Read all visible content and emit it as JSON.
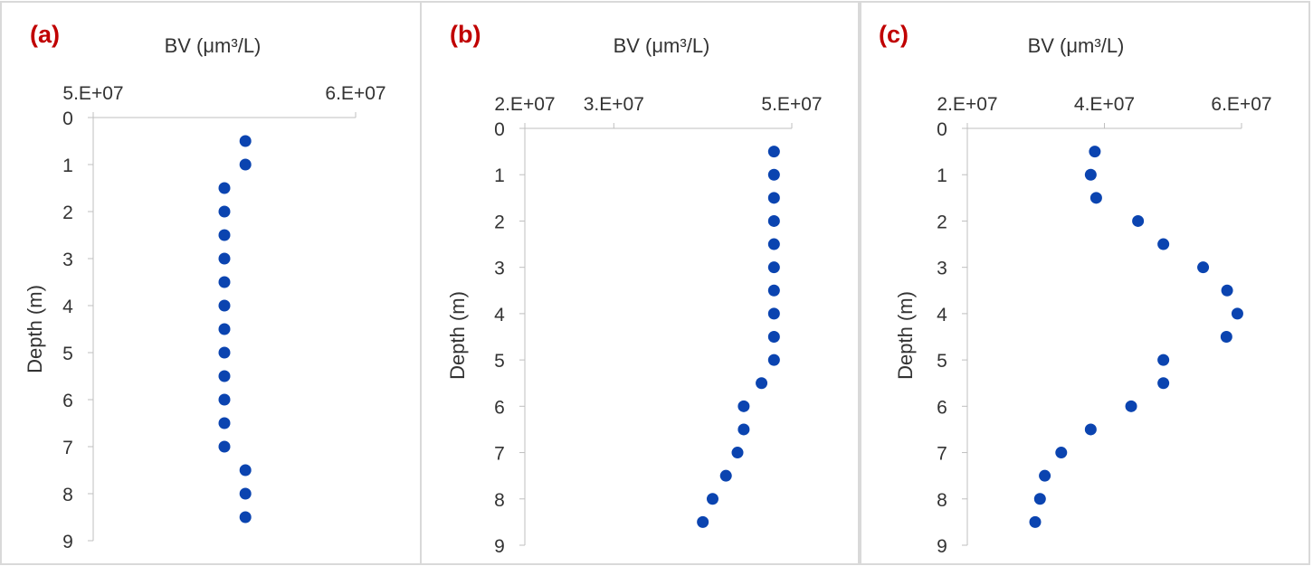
{
  "chart_data": [
    {
      "type": "scatter",
      "panel_label": "(a)",
      "xlabel": "BV (μm³/L)",
      "ylabel": "Depth (m)",
      "xlim": [
        50000000,
        60000000
      ],
      "ylim": [
        0,
        9
      ],
      "y_inverted": true,
      "x_axis_position": "top",
      "x_ticks": [
        50000000,
        60000000
      ],
      "x_tick_labels": [
        "5.E+07",
        "6.E+07"
      ],
      "y_ticks": [
        0,
        1,
        2,
        3,
        4,
        5,
        6,
        7,
        8,
        9
      ],
      "y_tick_labels": [
        "0",
        "1",
        "2",
        "3",
        "4",
        "5",
        "6",
        "7",
        "8",
        "9"
      ],
      "grid": false,
      "legend": false,
      "marker_color": "#0b44b0",
      "x": [
        55800000,
        55800000,
        55000000,
        55000000,
        55000000,
        55000000,
        55000000,
        55000000,
        55000000,
        55000000,
        55000000,
        55000000,
        55000000,
        55000000,
        55800000,
        55800000,
        55800000
      ],
      "y": [
        0.5,
        1.0,
        1.5,
        2.0,
        2.5,
        3.0,
        3.5,
        4.0,
        4.5,
        5.0,
        5.5,
        6.0,
        6.5,
        7.0,
        7.5,
        8.0,
        8.5
      ]
    },
    {
      "type": "scatter",
      "panel_label": "(b)",
      "xlabel": "BV (μm³/L)",
      "ylabel": "Depth (m)",
      "xlim": [
        20000000,
        50000000
      ],
      "ylim": [
        0,
        9
      ],
      "y_inverted": true,
      "x_axis_position": "top",
      "x_ticks": [
        20000000,
        30000000,
        50000000
      ],
      "x_tick_labels": [
        "2.E+07",
        "3.E+07",
        "5.E+07"
      ],
      "y_ticks": [
        0,
        1,
        2,
        3,
        4,
        5,
        6,
        7,
        8,
        9
      ],
      "y_tick_labels": [
        "0",
        "1",
        "2",
        "3",
        "4",
        "5",
        "6",
        "7",
        "8",
        "9"
      ],
      "grid": false,
      "legend": false,
      "marker_color": "#0b44b0",
      "x": [
        48000000,
        48000000,
        48000000,
        48000000,
        48000000,
        48000000,
        48000000,
        48000000,
        48000000,
        48000000,
        46600000,
        44600000,
        44600000,
        43900000,
        42600000,
        41100000,
        40000000
      ],
      "y": [
        0.5,
        1.0,
        1.5,
        2.0,
        2.5,
        3.0,
        3.5,
        4.0,
        4.5,
        5.0,
        5.5,
        6.0,
        6.5,
        7.0,
        7.5,
        8.0,
        8.5
      ]
    },
    {
      "type": "scatter",
      "panel_label": "(c)",
      "xlabel": "BV (μm³/L)",
      "ylabel": "Depth (m)",
      "xlim": [
        20000000,
        60000000
      ],
      "ylim": [
        0,
        9
      ],
      "y_inverted": true,
      "x_axis_position": "top",
      "x_ticks": [
        20000000,
        40000000,
        60000000
      ],
      "x_tick_labels": [
        "2.E+07",
        "4.E+07",
        "6.E+07"
      ],
      "y_ticks": [
        0,
        1,
        2,
        3,
        4,
        5,
        6,
        7,
        8,
        9
      ],
      "y_tick_labels": [
        "0",
        "1",
        "2",
        "3",
        "4",
        "5",
        "6",
        "7",
        "8",
        "9"
      ],
      "grid": false,
      "legend": false,
      "marker_color": "#0b44b0",
      "x": [
        38600000,
        38000000,
        38800000,
        44900000,
        48600000,
        54400000,
        57900000,
        59400000,
        57800000,
        48600000,
        48600000,
        43900000,
        38000000,
        33700000,
        31300000,
        30600000,
        29900000
      ],
      "y": [
        0.5,
        1.0,
        1.5,
        2.0,
        2.5,
        3.0,
        3.5,
        4.0,
        4.5,
        5.0,
        5.5,
        6.0,
        6.5,
        7.0,
        7.5,
        8.0,
        8.5
      ]
    }
  ]
}
